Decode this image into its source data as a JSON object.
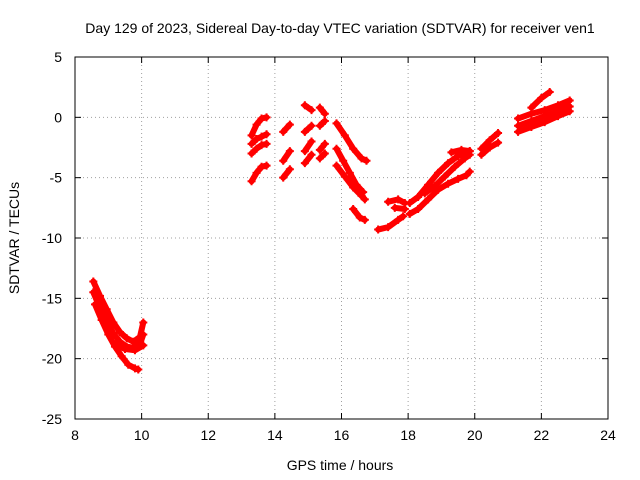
{
  "chart_data": {
    "type": "scatter",
    "title": "Day 129 of 2023, Sidereal Day-to-day VTEC variation (SDTVAR) for receiver ven1",
    "xlabel": "GPS time / hours",
    "ylabel": "SDTVAR / TECUs",
    "xlim": [
      8,
      24
    ],
    "ylim": [
      -25,
      5
    ],
    "xticks": [
      8,
      10,
      12,
      14,
      16,
      18,
      20,
      22,
      24
    ],
    "yticks": [
      5,
      0,
      -5,
      -10,
      -15,
      -20,
      -25
    ],
    "grid": true,
    "series_color": "#ff0000",
    "series": [
      {
        "name": "s1",
        "x": [
          8.55,
          8.75,
          8.95,
          9.15,
          9.35,
          9.55,
          9.75,
          9.95,
          10.05
        ],
        "y": [
          -13.6,
          -14.8,
          -15.9,
          -17.0,
          -17.8,
          -18.3,
          -18.6,
          -18.2,
          -17.0
        ]
      },
      {
        "name": "s2",
        "x": [
          8.55,
          8.75,
          8.95,
          9.15,
          9.35,
          9.55,
          9.75,
          9.95,
          10.05
        ],
        "y": [
          -14.5,
          -15.8,
          -16.9,
          -17.9,
          -18.6,
          -19.0,
          -19.1,
          -18.8,
          -18.0
        ]
      },
      {
        "name": "s3",
        "x": [
          8.6,
          8.8,
          9.0,
          9.2,
          9.4,
          9.6,
          9.8,
          9.9
        ],
        "y": [
          -15.5,
          -16.8,
          -18.0,
          -19.0,
          -19.8,
          -20.5,
          -20.8,
          -20.9
        ]
      },
      {
        "name": "s4",
        "x": [
          9.2,
          9.5,
          9.8,
          10.05
        ],
        "y": [
          -18.8,
          -19.2,
          -19.3,
          -18.9
        ]
      },
      {
        "name": "s5",
        "x": [
          13.3,
          13.45,
          13.6,
          13.75
        ],
        "y": [
          -1.5,
          -0.6,
          -0.1,
          0.0
        ]
      },
      {
        "name": "s6",
        "x": [
          13.3,
          13.45,
          13.6,
          13.75
        ],
        "y": [
          -2.2,
          -1.8,
          -1.6,
          -1.4
        ]
      },
      {
        "name": "s7",
        "x": [
          13.3,
          13.45,
          13.6,
          13.75
        ],
        "y": [
          -3.0,
          -2.6,
          -2.3,
          -2.2
        ]
      },
      {
        "name": "s8",
        "x": [
          13.3,
          13.45,
          13.6,
          13.75
        ],
        "y": [
          -5.3,
          -4.6,
          -4.1,
          -4.0
        ]
      },
      {
        "name": "s9",
        "x": [
          14.25,
          14.45
        ],
        "y": [
          -1.2,
          -0.6
        ]
      },
      {
        "name": "s10",
        "x": [
          14.25,
          14.45
        ],
        "y": [
          -3.6,
          -2.8
        ]
      },
      {
        "name": "s11",
        "x": [
          14.25,
          14.45
        ],
        "y": [
          -5.0,
          -4.3
        ]
      },
      {
        "name": "s12",
        "x": [
          14.9,
          15.1
        ],
        "y": [
          1.0,
          0.6
        ]
      },
      {
        "name": "s13",
        "x": [
          14.9,
          15.1
        ],
        "y": [
          -1.2,
          -0.7
        ]
      },
      {
        "name": "s14",
        "x": [
          14.9,
          15.1
        ],
        "y": [
          -2.8,
          -2.0
        ]
      },
      {
        "name": "s15",
        "x": [
          14.9,
          15.1
        ],
        "y": [
          -3.8,
          -3.1
        ]
      },
      {
        "name": "s16",
        "x": [
          15.35,
          15.5
        ],
        "y": [
          0.8,
          0.3
        ]
      },
      {
        "name": "s17",
        "x": [
          15.35,
          15.5
        ],
        "y": [
          -0.7,
          -0.3
        ]
      },
      {
        "name": "s18",
        "x": [
          15.35,
          15.5
        ],
        "y": [
          -2.7,
          -2.2
        ]
      },
      {
        "name": "s19",
        "x": [
          15.35,
          15.5
        ],
        "y": [
          -3.4,
          -3.0
        ]
      },
      {
        "name": "s20",
        "x": [
          15.85,
          16.1,
          16.35,
          16.6,
          16.75
        ],
        "y": [
          -0.5,
          -1.5,
          -2.6,
          -3.4,
          -3.6
        ]
      },
      {
        "name": "s21",
        "x": [
          15.85,
          16.05,
          16.25,
          16.45,
          16.65
        ],
        "y": [
          -2.6,
          -3.6,
          -4.6,
          -5.6,
          -6.2
        ]
      },
      {
        "name": "s22",
        "x": [
          15.85,
          16.1,
          16.35,
          16.6,
          16.7
        ],
        "y": [
          -4.0,
          -4.9,
          -5.8,
          -6.5,
          -6.8
        ]
      },
      {
        "name": "s23",
        "x": [
          16.35,
          16.55,
          16.7
        ],
        "y": [
          -7.6,
          -8.3,
          -8.5
        ]
      },
      {
        "name": "s24",
        "x": [
          17.1,
          17.4,
          17.7,
          17.85
        ],
        "y": [
          -9.3,
          -9.1,
          -8.5,
          -8.2
        ]
      },
      {
        "name": "s25",
        "x": [
          17.4,
          17.7,
          17.9
        ],
        "y": [
          -7.0,
          -6.8,
          -7.1
        ]
      },
      {
        "name": "s26",
        "x": [
          17.6,
          17.9
        ],
        "y": [
          -7.5,
          -7.6
        ]
      },
      {
        "name": "s27",
        "x": [
          18.05,
          18.3,
          18.6,
          18.9,
          19.2,
          19.5,
          19.75,
          19.85
        ],
        "y": [
          -7.1,
          -6.6,
          -5.6,
          -4.6,
          -3.8,
          -3.2,
          -2.9,
          -2.8
        ]
      },
      {
        "name": "s28",
        "x": [
          18.05,
          18.3,
          18.6,
          18.9,
          19.2,
          19.5,
          19.75,
          19.85
        ],
        "y": [
          -8.0,
          -7.6,
          -6.8,
          -6.0,
          -5.5,
          -5.1,
          -4.8,
          -4.5
        ]
      },
      {
        "name": "s29",
        "x": [
          18.5,
          18.8,
          19.1,
          19.4,
          19.7,
          19.85
        ],
        "y": [
          -6.3,
          -5.7,
          -4.9,
          -4.1,
          -3.4,
          -3.1
        ]
      },
      {
        "name": "s30",
        "x": [
          19.3,
          19.6,
          19.85
        ],
        "y": [
          -2.9,
          -2.7,
          -2.8
        ]
      },
      {
        "name": "s31",
        "x": [
          20.2,
          20.45,
          20.7
        ],
        "y": [
          -2.6,
          -1.9,
          -1.3
        ]
      },
      {
        "name": "s32",
        "x": [
          20.2,
          20.45,
          20.7
        ],
        "y": [
          -3.1,
          -2.5,
          -2.1
        ]
      },
      {
        "name": "s33",
        "x": [
          21.3,
          21.7,
          22.1,
          22.5,
          22.85
        ],
        "y": [
          -0.1,
          0.3,
          0.6,
          1.0,
          1.4
        ]
      },
      {
        "name": "s34",
        "x": [
          21.3,
          21.7,
          22.1,
          22.5,
          22.85
        ],
        "y": [
          -0.7,
          -0.3,
          0.1,
          0.5,
          0.9
        ]
      },
      {
        "name": "s35",
        "x": [
          21.3,
          21.7,
          22.1,
          22.5,
          22.85
        ],
        "y": [
          -1.2,
          -0.8,
          -0.4,
          0.1,
          0.5
        ]
      },
      {
        "name": "s36",
        "x": [
          21.7,
          22.0,
          22.25
        ],
        "y": [
          0.8,
          1.6,
          2.1
        ]
      }
    ]
  }
}
